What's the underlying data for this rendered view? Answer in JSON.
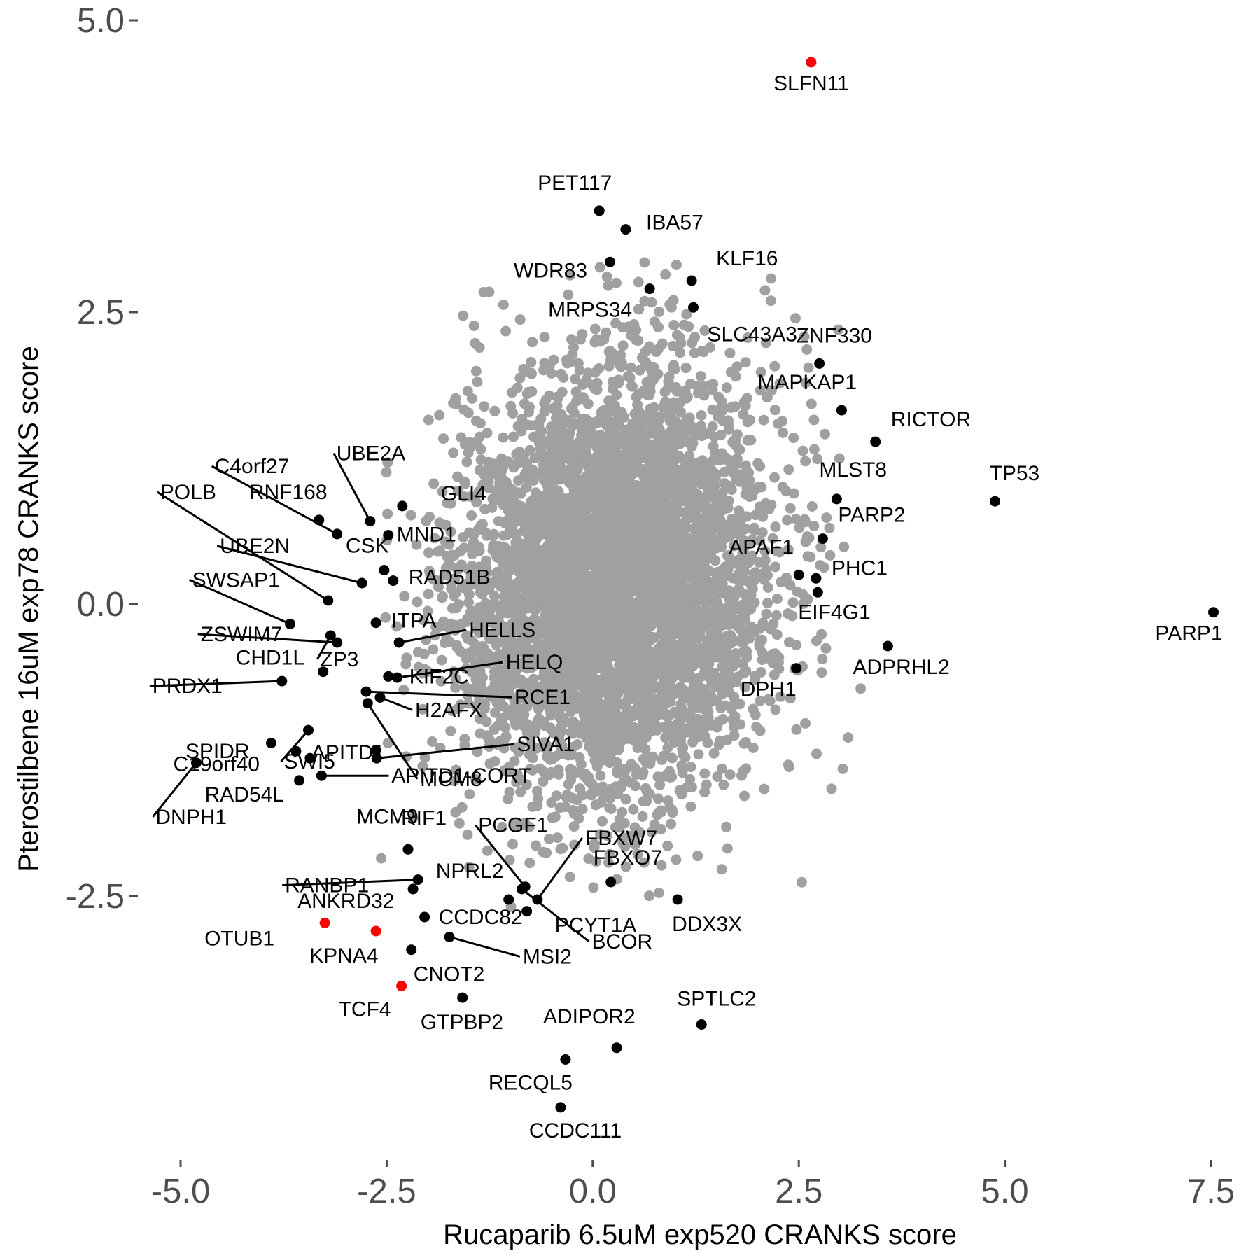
{
  "chart_data": {
    "type": "scatter",
    "xlabel": "Rucaparib 6.5uM exp520 CRANKS score",
    "ylabel": "Pterostilbene 16uM exp78 CRANKS score",
    "xlim": [
      -5.3,
      7.6
    ],
    "ylim": [
      -4.6,
      5.2
    ],
    "x_ticks": [
      -5.0,
      -2.5,
      0.0,
      2.5,
      5.0,
      7.5
    ],
    "x_tick_labels": [
      "-5.0",
      "-2.5",
      "0.0",
      "2.5",
      "5.0",
      "7.5"
    ],
    "y_ticks": [
      5.0,
      2.5,
      0.0,
      -2.5
    ],
    "y_tick_labels": [
      "5.0",
      "2.5",
      "0.0",
      "-2.5"
    ],
    "grid": false,
    "colors": {
      "background": "#ffffff",
      "cloud": "#a0a0a0",
      "highlight": "#000000",
      "red": "#ff0000",
      "tick": "#4d4d4d"
    },
    "background_cloud": {
      "description_count": 5000,
      "center": [
        0.25,
        0.2
      ],
      "sd": [
        0.95,
        0.9
      ],
      "correlation": 0.1,
      "seed": 1234
    },
    "series": [
      {
        "group": "labeled",
        "points": [
          {
            "label": "SLFN11",
            "x": 2.65,
            "y": 4.64,
            "color": "red"
          },
          {
            "label": "PET117",
            "x": 0.08,
            "y": 3.37,
            "color": "black"
          },
          {
            "label": "IBA57",
            "x": 0.4,
            "y": 3.21,
            "color": "black"
          },
          {
            "label": "WDR83",
            "x": 0.21,
            "y": 2.93,
            "color": "black"
          },
          {
            "label": "KLF16",
            "x": 1.2,
            "y": 2.77,
            "color": "black"
          },
          {
            "label": "MRPS34",
            "x": 0.69,
            "y": 2.7,
            "color": "black"
          },
          {
            "label": "SLC43A3",
            "x": 1.22,
            "y": 2.54,
            "color": "black"
          },
          {
            "label": "ZNF330",
            "x": 2.75,
            "y": 2.06,
            "color": "black"
          },
          {
            "label": "MAPKAP1",
            "x": 3.02,
            "y": 1.66,
            "color": "black"
          },
          {
            "label": "RICTOR",
            "x": 3.43,
            "y": 1.39,
            "color": "black"
          },
          {
            "label": "TP53",
            "x": 4.88,
            "y": 0.88,
            "color": "black"
          },
          {
            "label": "MLST8",
            "x": 2.96,
            "y": 0.9,
            "color": "black"
          },
          {
            "label": "PARP2",
            "x": 2.79,
            "y": 0.56,
            "color": "black"
          },
          {
            "label": "APAF1",
            "x": 2.5,
            "y": 0.25,
            "color": "black"
          },
          {
            "label": "PHC1",
            "x": 2.71,
            "y": 0.22,
            "color": "black"
          },
          {
            "label": "EIF4G1",
            "x": 2.73,
            "y": 0.1,
            "color": "black"
          },
          {
            "label": "PARP1",
            "x": 7.53,
            "y": -0.07,
            "color": "black"
          },
          {
            "label": "ADPRHL2",
            "x": 3.58,
            "y": -0.36,
            "color": "black"
          },
          {
            "label": "DPH1",
            "x": 2.47,
            "y": -0.55,
            "color": "black"
          },
          {
            "label": "C4orf27",
            "x": -3.1,
            "y": 0.6,
            "color": "black"
          },
          {
            "label": "UBE2A",
            "x": -2.7,
            "y": 0.71,
            "color": "black"
          },
          {
            "label": "RNF168",
            "x": -3.32,
            "y": 0.72,
            "color": "black"
          },
          {
            "label": "GLI4",
            "x": -2.31,
            "y": 0.84,
            "color": "black"
          },
          {
            "label": "POLB",
            "x": -3.21,
            "y": 0.03,
            "color": "black"
          },
          {
            "label": "MND1",
            "x": -2.48,
            "y": 0.59,
            "color": "black"
          },
          {
            "label": "UBE2N",
            "x": -2.8,
            "y": 0.18,
            "color": "black"
          },
          {
            "label": "CSK",
            "x": -2.53,
            "y": 0.29,
            "color": "black"
          },
          {
            "label": "RAD51B",
            "x": -2.42,
            "y": 0.2,
            "color": "black"
          },
          {
            "label": "SWSAP1",
            "x": -3.67,
            "y": -0.17,
            "color": "black"
          },
          {
            "label": "ZP3",
            "x": -3.18,
            "y": -0.27,
            "color": "black"
          },
          {
            "label": "ITPA",
            "x": -2.63,
            "y": -0.16,
            "color": "black"
          },
          {
            "label": "ZSWIM7",
            "x": -3.1,
            "y": -0.33,
            "color": "black"
          },
          {
            "label": "HELLS",
            "x": -2.35,
            "y": -0.33,
            "color": "black"
          },
          {
            "label": "CHD1L",
            "x": -3.27,
            "y": -0.58,
            "color": "black"
          },
          {
            "label": "KIF2C",
            "x": -2.48,
            "y": -0.62,
            "color": "black"
          },
          {
            "label": "HELQ",
            "x": -2.37,
            "y": -0.63,
            "color": "black"
          },
          {
            "label": "PRDX1",
            "x": -3.77,
            "y": -0.66,
            "color": "black"
          },
          {
            "label": "RCE1",
            "x": -2.75,
            "y": -0.75,
            "color": "black"
          },
          {
            "label": "H2AFX",
            "x": -2.58,
            "y": -0.8,
            "color": "black"
          },
          {
            "label": "SWI5",
            "x": -3.45,
            "y": -1.08,
            "color": "black"
          },
          {
            "label": "C19orf40",
            "x": -3.9,
            "y": -1.19,
            "color": "black"
          },
          {
            "label": "APITD1",
            "x": -3.43,
            "y": -1.32,
            "color": "black"
          },
          {
            "label": "SIVA1",
            "x": -2.62,
            "y": -1.32,
            "color": "black"
          },
          {
            "label": "MCM8",
            "x": -2.73,
            "y": -0.85,
            "color": "black"
          },
          {
            "label": "SPIDR",
            "x": -3.6,
            "y": -1.26,
            "color": "black"
          },
          {
            "label": "DNPH1",
            "x": -4.81,
            "y": -1.36,
            "color": "black"
          },
          {
            "label": "RAD54L",
            "x": -3.56,
            "y": -1.51,
            "color": "black"
          },
          {
            "label": "APITD1-CORT",
            "x": -3.29,
            "y": -1.47,
            "color": "black"
          },
          {
            "label": "RIF1",
            "x": -2.24,
            "y": -2.1,
            "color": "black"
          },
          {
            "label": "RANBP1",
            "x": -2.12,
            "y": -2.36,
            "color": "black"
          },
          {
            "label": "ANKRD32",
            "x": -2.18,
            "y": -2.44,
            "color": "black"
          },
          {
            "label": "PCGF1",
            "x": -0.82,
            "y": -2.42,
            "color": "black"
          },
          {
            "label": "FBXW7",
            "x": -0.67,
            "y": -2.53,
            "color": "black"
          },
          {
            "label": "NPRL2",
            "x": -1.02,
            "y": -2.53,
            "color": "black"
          },
          {
            "label": "FBXO7",
            "x": 0.22,
            "y": -2.38,
            "color": "black"
          },
          {
            "label": "DDX3X",
            "x": 1.03,
            "y": -2.53,
            "color": "black"
          },
          {
            "label": "PCYT1A",
            "x": -0.8,
            "y": -2.63,
            "color": "black"
          },
          {
            "label": "CCDC82",
            "x": -2.04,
            "y": -2.68,
            "color": "black"
          },
          {
            "label": "BCOR",
            "x": -0.86,
            "y": -2.44,
            "color": "black"
          },
          {
            "label": "MSI2",
            "x": -1.74,
            "y": -2.85,
            "color": "black"
          },
          {
            "label": "OTUB1",
            "x": -3.25,
            "y": -2.73,
            "color": "red"
          },
          {
            "label": "KPNA4",
            "x": -2.63,
            "y": -2.8,
            "color": "red"
          },
          {
            "label": "CNOT2",
            "x": -2.2,
            "y": -2.96,
            "color": "black"
          },
          {
            "label": "TCF4",
            "x": -2.32,
            "y": -3.27,
            "color": "red"
          },
          {
            "label": "GTPBP2",
            "x": -1.58,
            "y": -3.37,
            "color": "black"
          },
          {
            "label": "SPTLC2",
            "x": 1.32,
            "y": -3.6,
            "color": "black"
          },
          {
            "label": "ADIPOR2",
            "x": 0.29,
            "y": -3.8,
            "color": "black"
          },
          {
            "label": "RECQL5",
            "x": -0.33,
            "y": -3.9,
            "color": "black"
          },
          {
            "label": "CCDC111",
            "x": -0.39,
            "y": -4.31,
            "color": "black"
          },
          {
            "label": "MCM9",
            "x": -2.63,
            "y": -1.25,
            "color": "black"
          }
        ]
      }
    ]
  }
}
